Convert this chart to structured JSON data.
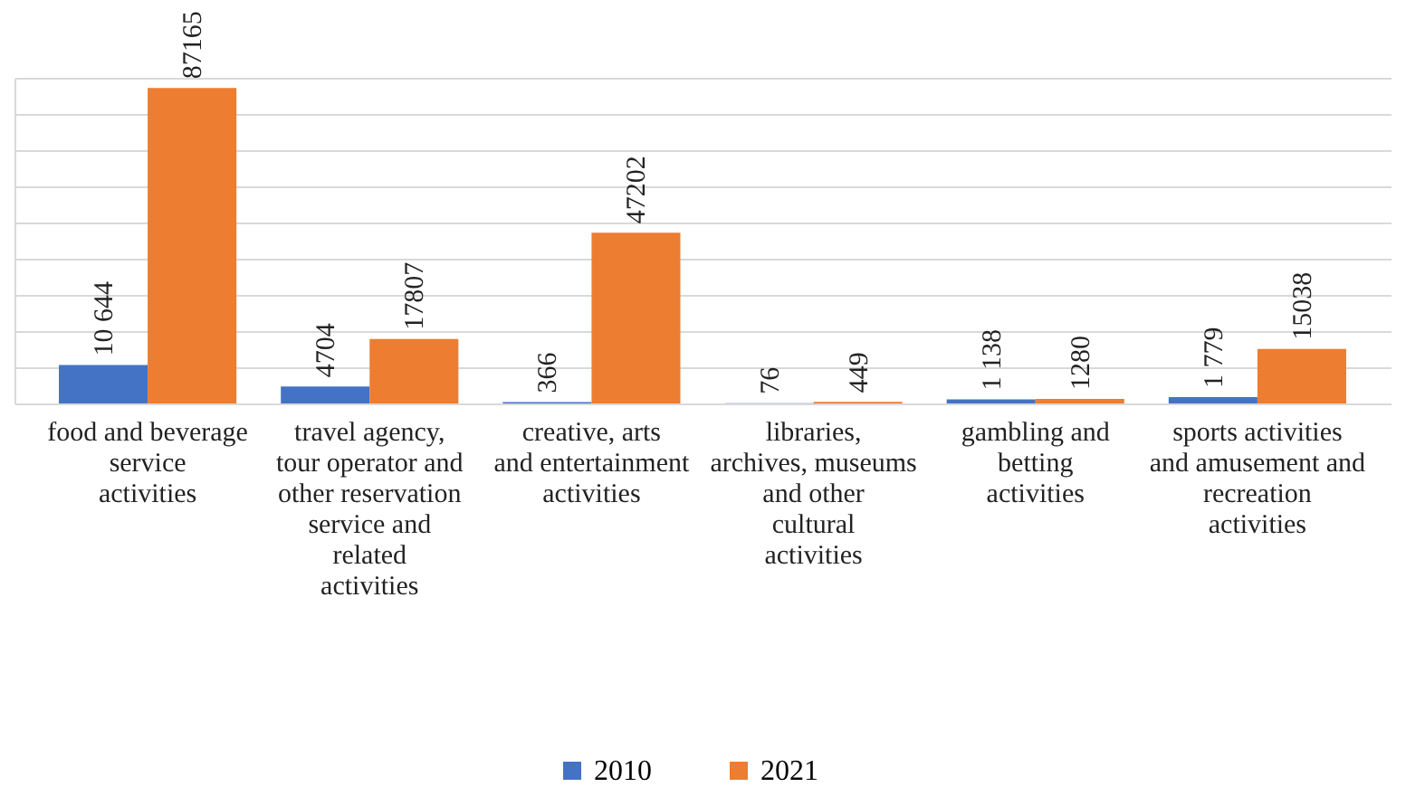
{
  "chart_data": {
    "type": "bar",
    "categories": [
      "food and beverage service activities",
      "travel agency, tour operator and other reservation service and related activities",
      "creative, arts and entertainment activities",
      "libraries, archives, museums and other cultural activities",
      "gambling and betting activities",
      "sports activities and amusement and recreation activities"
    ],
    "series": [
      {
        "name": "2010",
        "color": "#4472c4",
        "values": [
          10644,
          4704,
          366,
          76,
          1138,
          1779
        ],
        "value_labels": [
          "10 644",
          "4704",
          "366",
          "76",
          "1 138",
          "1 779"
        ]
      },
      {
        "name": "2021",
        "color": "#ed7d31",
        "values": [
          87165,
          17807,
          47202,
          449,
          1280,
          15038
        ],
        "value_labels": [
          "87165",
          "17807",
          "47202",
          "449",
          "1280",
          "15038"
        ]
      }
    ],
    "ylim": [
      0,
      90000
    ],
    "yticks": [
      {
        "value": 0,
        "label": null
      },
      {
        "value": 10000,
        "label": null
      },
      {
        "value": 20000,
        "label": null
      },
      {
        "value": 30000,
        "label": null
      },
      {
        "value": 40000,
        "label": null
      },
      {
        "value": 50000,
        "label": null
      },
      {
        "value": 60000,
        "label": null
      },
      {
        "value": 70000,
        "label": null
      },
      {
        "value": 80000,
        "label": null
      },
      {
        "value": 90000,
        "label": null
      }
    ],
    "grid": "y",
    "legend": "bottom",
    "tick_labels": "x"
  }
}
